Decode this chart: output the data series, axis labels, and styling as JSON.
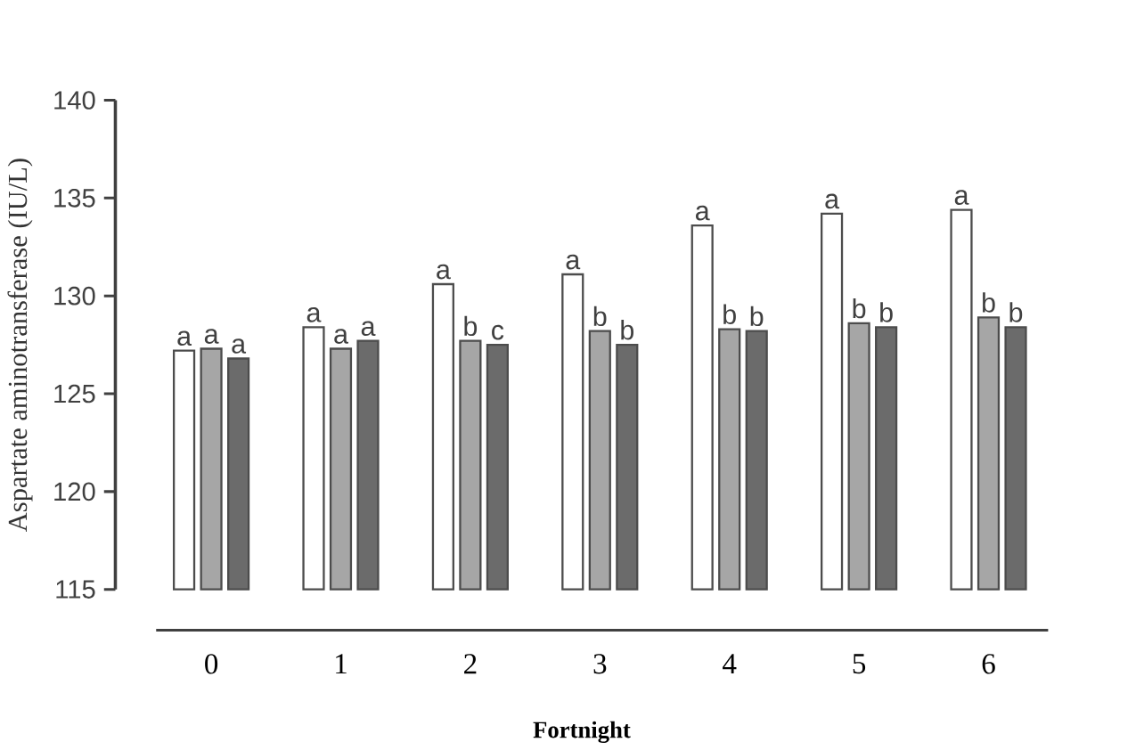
{
  "chart_data": {
    "type": "bar",
    "xlabel": "Fortnight",
    "ylabel": "Aspartate aminotransferase (IU/L)",
    "categories": [
      "0",
      "1",
      "2",
      "3",
      "4",
      "5",
      "6"
    ],
    "series": [
      {
        "color": "#ffffff",
        "values": [
          127.2,
          128.4,
          130.6,
          131.1,
          133.6,
          134.2,
          134.4
        ],
        "value_labels": [
          "a",
          "a",
          "a",
          "a",
          "a",
          "a",
          "a"
        ]
      },
      {
        "color": "#a6a6a6",
        "values": [
          127.3,
          127.3,
          127.7,
          128.2,
          128.3,
          128.6,
          128.9
        ],
        "value_labels": [
          "a",
          "a",
          "b",
          "b",
          "b",
          "b",
          "b"
        ]
      },
      {
        "color": "#6b6b6b",
        "values": [
          126.8,
          127.7,
          127.5,
          127.5,
          128.2,
          128.4,
          128.4
        ],
        "value_labels": [
          "a",
          "a",
          "c",
          "b",
          "b",
          "b",
          "b"
        ]
      }
    ],
    "ylim": [
      115,
      140
    ],
    "yticks": [
      115,
      120,
      125,
      130,
      135,
      140
    ]
  }
}
